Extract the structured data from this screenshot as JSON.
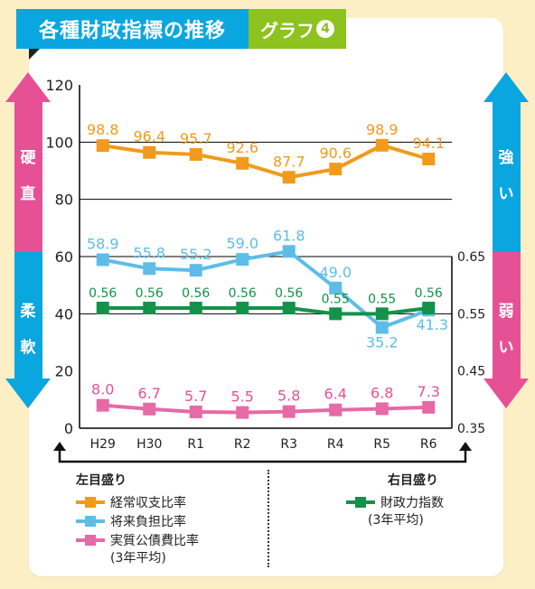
{
  "header": {
    "title": "各種財政指標の推移",
    "graph_label": "グラフ",
    "graph_number": "4"
  },
  "side_labels": {
    "left_top": [
      "硬",
      "直"
    ],
    "left_bottom": [
      "柔",
      "軟"
    ],
    "right_top": [
      "強",
      "い"
    ],
    "right_bottom": [
      "弱",
      "い"
    ]
  },
  "colors": {
    "pink": "#e65196",
    "blue": "#0aa6e0",
    "orange": "#f19a1c",
    "sky": "#5dbde8",
    "green": "#14924a",
    "rose": "#e56aa7",
    "grid": "#000000"
  },
  "chart_data": {
    "type": "line",
    "categories": [
      "H29",
      "H30",
      "R1",
      "R2",
      "R3",
      "R4",
      "R5",
      "R6"
    ],
    "y_left": {
      "min": 0,
      "max": 120,
      "ticks": [
        "0",
        "20",
        "40",
        "60",
        "80",
        "100",
        "120"
      ]
    },
    "y_right": {
      "min": 0.35,
      "max": 0.65,
      "ticks": [
        "0.35",
        "0.45",
        "0.55",
        "0.65"
      ]
    },
    "gridlines": [
      40,
      60,
      80,
      100
    ],
    "series": [
      {
        "name": "経常収支比率",
        "axis": "left",
        "color": "#f19a1c",
        "values": [
          98.8,
          96.4,
          95.7,
          92.6,
          87.7,
          90.6,
          98.9,
          94.1
        ],
        "labels": [
          "98.8",
          "96.4",
          "95.7",
          "92.6",
          "87.7",
          "90.6",
          "98.9",
          "94.1"
        ]
      },
      {
        "name": "将来負担比率",
        "axis": "left",
        "color": "#5dbde8",
        "values": [
          58.9,
          55.8,
          55.2,
          59.0,
          61.8,
          49.0,
          35.2,
          41.3
        ],
        "labels": [
          "58.9",
          "55.8",
          "55.2",
          "59.0",
          "61.8",
          "49.0",
          "35.2",
          "41.3"
        ]
      },
      {
        "name": "財政力指数",
        "axis": "right",
        "color": "#14924a",
        "values": [
          0.56,
          0.56,
          0.56,
          0.56,
          0.56,
          0.55,
          0.55,
          0.56
        ],
        "labels": [
          "0.56",
          "0.56",
          "0.56",
          "0.56",
          "0.56",
          "0.55",
          "0.55",
          "0.56"
        ]
      },
      {
        "name": "実質公債費比率",
        "axis": "left",
        "color": "#e56aa7",
        "values": [
          8.0,
          6.7,
          5.7,
          5.5,
          5.8,
          6.4,
          6.8,
          7.3
        ],
        "labels": [
          "8.0",
          "6.7",
          "5.7",
          "5.5",
          "5.8",
          "6.4",
          "6.8",
          "7.3"
        ]
      }
    ]
  },
  "legend": {
    "left_heading": "左目盛り",
    "right_heading": "右目盛り",
    "left_items": [
      "経常収支比率",
      "将来負担比率",
      "実質公債費比率"
    ],
    "left_note": "(3年平均)",
    "right_items": [
      "財政力指数"
    ],
    "right_note": "(3年平均)"
  }
}
